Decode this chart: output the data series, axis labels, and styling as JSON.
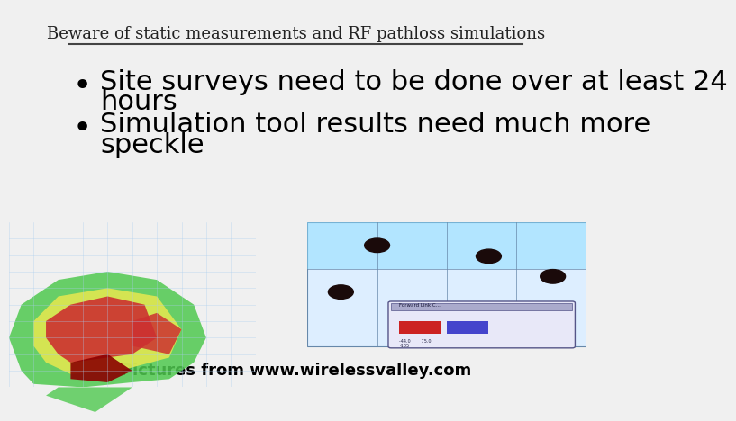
{
  "title": "Beware of static measurements and RF pathloss simulations",
  "bullet1_line1": "Site surveys need to be done over at least 24",
  "bullet1_line2": "hours",
  "bullet2_line1": "Simulation tool results need much more",
  "bullet2_line2": "speckle",
  "caption": "Pictures from www.wirelessvalley.com",
  "bg_color": "#f0f0f0",
  "title_fontsize": 13,
  "bullet_fontsize": 22,
  "caption_fontsize": 13,
  "title_color": "#222222",
  "bullet_color": "#000000",
  "caption_color": "#000000",
  "line_color": "#444444"
}
